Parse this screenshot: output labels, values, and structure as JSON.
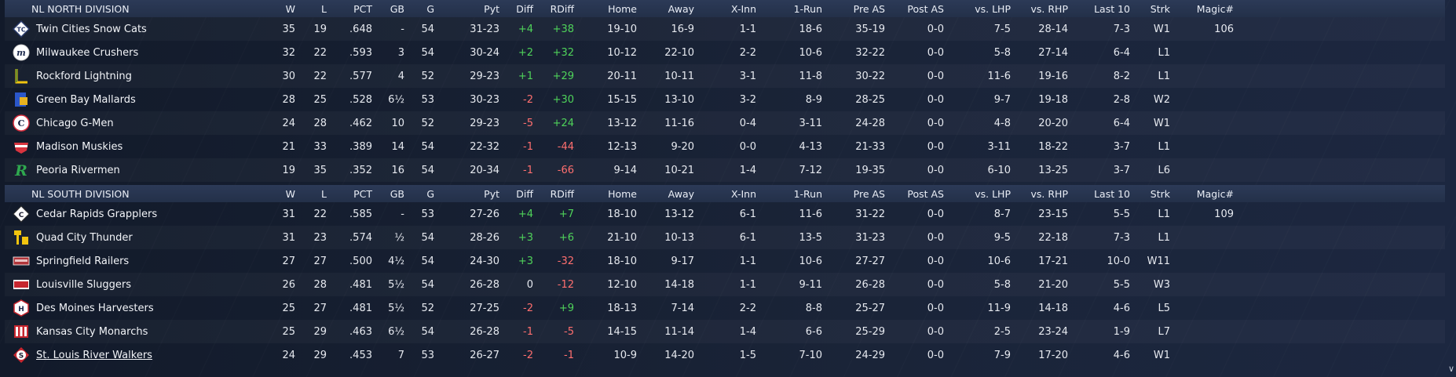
{
  "columns": [
    "W",
    "L",
    "PCT",
    "GB",
    "G",
    "Pyt",
    "Diff",
    "RDiff",
    "Home",
    "Away",
    "X-Inn",
    "1-Run",
    "Pre AS",
    "Post AS",
    "vs. LHP",
    "vs. RHP",
    "Last 10",
    "Strk",
    "Magic#"
  ],
  "divisions": [
    {
      "name": "NL NORTH DIVISION",
      "teams": [
        {
          "name": "Twin Cities Snow Cats",
          "logo": "snow-cats-logo",
          "W": "35",
          "L": "19",
          "PCT": ".648",
          "GB": "-",
          "G": "54",
          "Pyt": "31-23",
          "Diff": "+4",
          "RDiff": "+38",
          "Home": "19-10",
          "Away": "16-9",
          "XInn": "1-1",
          "OneRun": "18-6",
          "PreAS": "35-19",
          "PostAS": "0-0",
          "vsLHP": "7-5",
          "vsRHP": "28-14",
          "Last10": "7-3",
          "Strk": "W1",
          "Magic": "106"
        },
        {
          "name": "Milwaukee Crushers",
          "logo": "crushers-logo",
          "W": "32",
          "L": "22",
          "PCT": ".593",
          "GB": "3",
          "G": "54",
          "Pyt": "30-24",
          "Diff": "+2",
          "RDiff": "+32",
          "Home": "10-12",
          "Away": "22-10",
          "XInn": "2-2",
          "OneRun": "10-6",
          "PreAS": "32-22",
          "PostAS": "0-0",
          "vsLHP": "5-8",
          "vsRHP": "27-14",
          "Last10": "6-4",
          "Strk": "L1",
          "Magic": ""
        },
        {
          "name": "Rockford Lightning",
          "logo": "lightning-logo",
          "W": "30",
          "L": "22",
          "PCT": ".577",
          "GB": "4",
          "G": "52",
          "Pyt": "29-23",
          "Diff": "+1",
          "RDiff": "+29",
          "Home": "20-11",
          "Away": "10-11",
          "XInn": "3-1",
          "OneRun": "11-8",
          "PreAS": "30-22",
          "PostAS": "0-0",
          "vsLHP": "11-6",
          "vsRHP": "19-16",
          "Last10": "8-2",
          "Strk": "L1",
          "Magic": ""
        },
        {
          "name": "Green Bay  Mallards",
          "logo": "mallards-logo",
          "W": "28",
          "L": "25",
          "PCT": ".528",
          "GB": "6½",
          "G": "53",
          "Pyt": "30-23",
          "Diff": "-2",
          "RDiff": "+30",
          "Home": "15-15",
          "Away": "13-10",
          "XInn": "3-2",
          "OneRun": "8-9",
          "PreAS": "28-25",
          "PostAS": "0-0",
          "vsLHP": "9-7",
          "vsRHP": "19-18",
          "Last10": "2-8",
          "Strk": "W2",
          "Magic": ""
        },
        {
          "name": "Chicago G-Men",
          "logo": "g-men-logo",
          "W": "24",
          "L": "28",
          "PCT": ".462",
          "GB": "10",
          "G": "52",
          "Pyt": "29-23",
          "Diff": "-5",
          "RDiff": "+24",
          "Home": "13-12",
          "Away": "11-16",
          "XInn": "0-4",
          "OneRun": "3-11",
          "PreAS": "24-28",
          "PostAS": "0-0",
          "vsLHP": "4-8",
          "vsRHP": "20-20",
          "Last10": "6-4",
          "Strk": "W1",
          "Magic": ""
        },
        {
          "name": "Madison Muskies",
          "logo": "muskies-logo",
          "W": "21",
          "L": "33",
          "PCT": ".389",
          "GB": "14",
          "G": "54",
          "Pyt": "22-32",
          "Diff": "-1",
          "RDiff": "-44",
          "Home": "12-13",
          "Away": "9-20",
          "XInn": "0-0",
          "OneRun": "4-13",
          "PreAS": "21-33",
          "PostAS": "0-0",
          "vsLHP": "3-11",
          "vsRHP": "18-22",
          "Last10": "3-7",
          "Strk": "L1",
          "Magic": ""
        },
        {
          "name": "Peoria Rivermen",
          "logo": "rivermen-logo",
          "W": "19",
          "L": "35",
          "PCT": ".352",
          "GB": "16",
          "G": "54",
          "Pyt": "20-34",
          "Diff": "-1",
          "RDiff": "-66",
          "Home": "9-14",
          "Away": "10-21",
          "XInn": "1-4",
          "OneRun": "7-12",
          "PreAS": "19-35",
          "PostAS": "0-0",
          "vsLHP": "6-10",
          "vsRHP": "13-25",
          "Last10": "3-7",
          "Strk": "L6",
          "Magic": ""
        }
      ]
    },
    {
      "name": "NL SOUTH DIVISION",
      "teams": [
        {
          "name": "Cedar Rapids Grapplers",
          "logo": "grapplers-logo",
          "W": "31",
          "L": "22",
          "PCT": ".585",
          "GB": "-",
          "G": "53",
          "Pyt": "27-26",
          "Diff": "+4",
          "RDiff": "+7",
          "Home": "18-10",
          "Away": "13-12",
          "XInn": "6-1",
          "OneRun": "11-6",
          "PreAS": "31-22",
          "PostAS": "0-0",
          "vsLHP": "8-7",
          "vsRHP": "23-15",
          "Last10": "5-5",
          "Strk": "L1",
          "Magic": "109"
        },
        {
          "name": "Quad City Thunder",
          "logo": "thunder-logo",
          "W": "31",
          "L": "23",
          "PCT": ".574",
          "GB": "½",
          "G": "54",
          "Pyt": "28-26",
          "Diff": "+3",
          "RDiff": "+6",
          "Home": "21-10",
          "Away": "10-13",
          "XInn": "6-1",
          "OneRun": "13-5",
          "PreAS": "31-23",
          "PostAS": "0-0",
          "vsLHP": "9-5",
          "vsRHP": "22-18",
          "Last10": "7-3",
          "Strk": "L1",
          "Magic": ""
        },
        {
          "name": "Springfield Railers",
          "logo": "railers-logo",
          "W": "27",
          "L": "27",
          "PCT": ".500",
          "GB": "4½",
          "G": "54",
          "Pyt": "24-30",
          "Diff": "+3",
          "RDiff": "-32",
          "Home": "18-10",
          "Away": "9-17",
          "XInn": "1-1",
          "OneRun": "10-6",
          "PreAS": "27-27",
          "PostAS": "0-0",
          "vsLHP": "10-6",
          "vsRHP": "17-21",
          "Last10": "10-0",
          "Strk": "W11",
          "Magic": ""
        },
        {
          "name": "Louisville Sluggers",
          "logo": "sluggers-logo",
          "W": "26",
          "L": "28",
          "PCT": ".481",
          "GB": "5½",
          "G": "54",
          "Pyt": "26-28",
          "Diff": "0",
          "RDiff": "-12",
          "Home": "12-10",
          "Away": "14-18",
          "XInn": "1-1",
          "OneRun": "9-11",
          "PreAS": "26-28",
          "PostAS": "0-0",
          "vsLHP": "5-8",
          "vsRHP": "21-20",
          "Last10": "5-5",
          "Strk": "W3",
          "Magic": ""
        },
        {
          "name": "Des Moines Harvesters",
          "logo": "harvesters-logo",
          "W": "25",
          "L": "27",
          "PCT": ".481",
          "GB": "5½",
          "G": "52",
          "Pyt": "27-25",
          "Diff": "-2",
          "RDiff": "+9",
          "Home": "18-13",
          "Away": "7-14",
          "XInn": "2-2",
          "OneRun": "8-8",
          "PreAS": "25-27",
          "PostAS": "0-0",
          "vsLHP": "11-9",
          "vsRHP": "14-18",
          "Last10": "4-6",
          "Strk": "L5",
          "Magic": ""
        },
        {
          "name": "Kansas City Monarchs",
          "logo": "monarchs-logo",
          "W": "25",
          "L": "29",
          "PCT": ".463",
          "GB": "6½",
          "G": "54",
          "Pyt": "26-28",
          "Diff": "-1",
          "RDiff": "-5",
          "Home": "14-15",
          "Away": "11-14",
          "XInn": "1-4",
          "OneRun": "6-6",
          "PreAS": "25-29",
          "PostAS": "0-0",
          "vsLHP": "2-5",
          "vsRHP": "23-24",
          "Last10": "1-9",
          "Strk": "L7",
          "Magic": ""
        },
        {
          "name": "St. Louis River Walkers",
          "logo": "river-walkers-logo",
          "W": "24",
          "L": "29",
          "PCT": ".453",
          "GB": "7",
          "G": "53",
          "Pyt": "26-27",
          "Diff": "-2",
          "RDiff": "-1",
          "Home": "10-9",
          "Away": "14-20",
          "XInn": "1-5",
          "OneRun": "7-10",
          "PreAS": "24-29",
          "PostAS": "0-0",
          "vsLHP": "7-9",
          "vsRHP": "17-20",
          "Last10": "4-6",
          "Strk": "W1",
          "Magic": "",
          "link": true
        }
      ]
    }
  ],
  "colors": {
    "positive": "#4fd35a",
    "negative": "#ff6f6f",
    "header": "#2c3a57",
    "background": "#141d2e"
  },
  "scroll_icon": "chevron-down-icon"
}
